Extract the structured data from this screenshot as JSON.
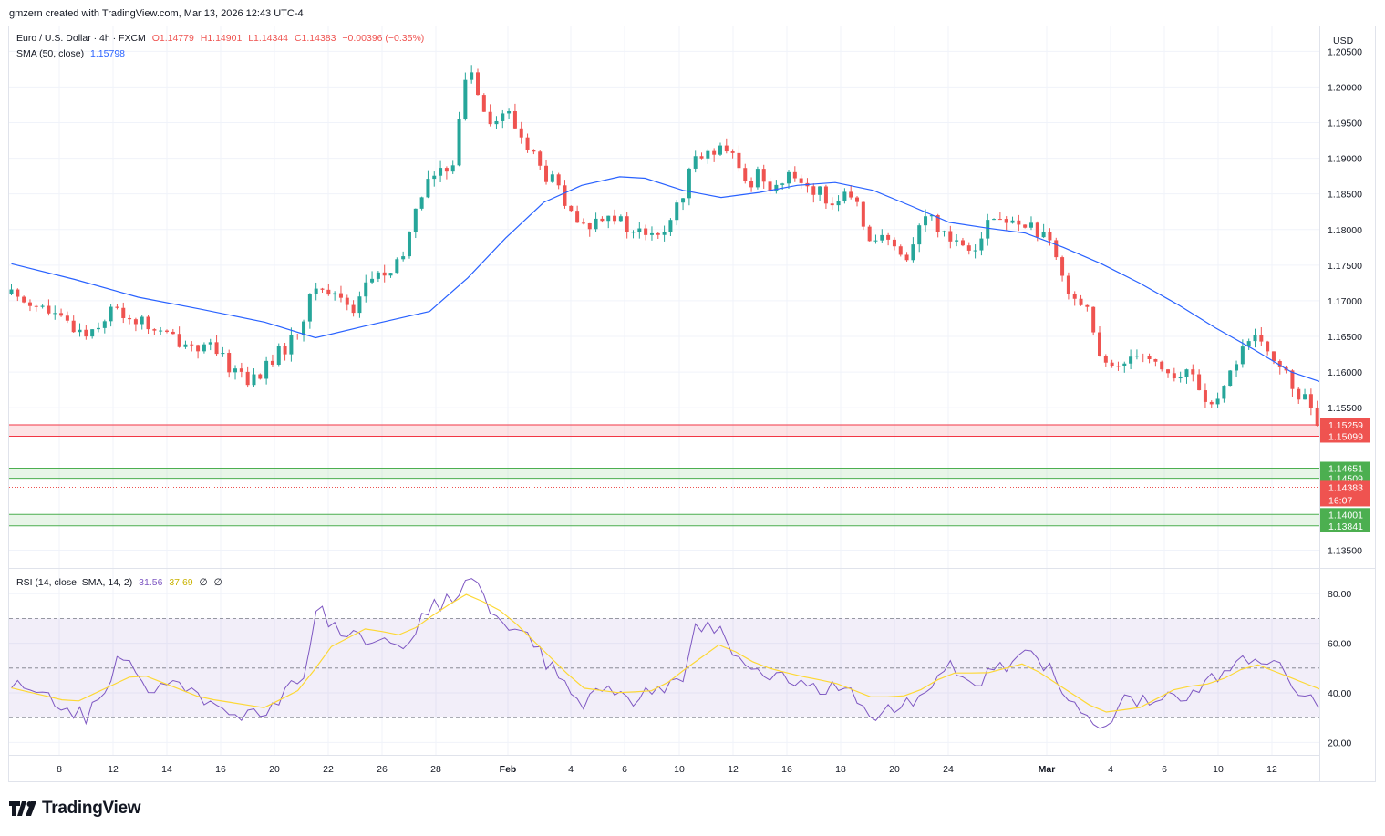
{
  "header": {
    "credit": "gmzern created with TradingView.com, Mar 13, 2026 12:43 UTC-4"
  },
  "legend": {
    "symbol": "Euro / U.S. Dollar · 4h · FXCM",
    "open": "O1.14779",
    "high": "H1.14901",
    "low": "L1.14344",
    "close": "C1.14383",
    "change": "−0.00396 (−0.35%)",
    "sma_label": "SMA (50, close)",
    "sma_value": "1.15798",
    "rsi_label": "RSI (14, close, SMA, 14, 2)",
    "rsi_value": "31.56",
    "rsi_ma_value": "37.69",
    "rsi_extra1": "∅",
    "rsi_extra2": "∅"
  },
  "currency": "USD",
  "countdown": "16:07",
  "brand": "TradingView",
  "colors": {
    "up": "#26a69a",
    "down": "#ef5350",
    "sma": "#2962ff",
    "rsi": "#7e57c2",
    "rsi_ma": "#fdd835",
    "grid": "#f0f3fa"
  },
  "chart_data": [
    {
      "type": "candlestick",
      "title": "Euro / U.S. Dollar · 4h · FXCM",
      "ylim": [
        1.1325,
        1.2085
      ],
      "price_ticks": [
        "1.20500",
        "1.20000",
        "1.19500",
        "1.19000",
        "1.18500",
        "1.18000",
        "1.17500",
        "1.17000",
        "1.16500",
        "1.16000",
        "1.15500",
        "1.13500"
      ],
      "x_ticks": [
        "8",
        "12",
        "14",
        "16",
        "20",
        "22",
        "26",
        "28",
        "Feb",
        "4",
        "6",
        "10",
        "12",
        "16",
        "18",
        "20",
        "24",
        "Mar",
        "4",
        "6",
        "10",
        "12"
      ],
      "zones": [
        {
          "name": "resistance",
          "high": 1.15259,
          "low": 1.15099,
          "high_label": "1.15259",
          "low_label": "1.15099",
          "color": "#f23645"
        },
        {
          "name": "support-1",
          "high": 1.14651,
          "low": 1.14509,
          "high_label": "1.14651",
          "low_label": "1.14509",
          "color": "#4caf50"
        },
        {
          "name": "support-2",
          "high": 1.14001,
          "low": 1.13841,
          "high_label": "1.14001",
          "low_label": "1.13841",
          "color": "#4caf50"
        }
      ],
      "last_price": 1.14383,
      "last_price_label": "1.14383",
      "close_path": [
        [
          0,
          1.171
        ],
        [
          4,
          1.1695
        ],
        [
          8,
          1.167
        ],
        [
          12,
          1.1655
        ],
        [
          16,
          1.1688
        ],
        [
          20,
          1.1672
        ],
        [
          24,
          1.1652
        ],
        [
          28,
          1.164
        ],
        [
          32,
          1.163
        ],
        [
          34,
          1.161
        ],
        [
          36,
          1.1602
        ],
        [
          38,
          1.1585
        ],
        [
          40,
          1.1605
        ],
        [
          42,
          1.1625
        ],
        [
          44,
          1.164
        ],
        [
          46,
          1.1675
        ],
        [
          48,
          1.172
        ],
        [
          50,
          1.1712
        ],
        [
          52,
          1.1705
        ],
        [
          54,
          1.169
        ],
        [
          56,
          1.1725
        ],
        [
          58,
          1.1738
        ],
        [
          60,
          1.1735
        ],
        [
          62,
          1.1765
        ],
        [
          64,
          1.184
        ],
        [
          66,
          1.1872
        ],
        [
          68,
          1.1878
        ],
        [
          70,
          1.1905
        ],
        [
          72,
          1.2035
        ],
        [
          74,
          1.1988
        ],
        [
          76,
          1.1945
        ],
        [
          78,
          1.1968
        ],
        [
          80,
          1.1935
        ],
        [
          82,
          1.1912
        ],
        [
          84,
          1.1875
        ],
        [
          86,
          1.1865
        ],
        [
          88,
          1.182
        ],
        [
          90,
          1.18
        ],
        [
          92,
          1.181
        ],
        [
          94,
          1.183
        ],
        [
          96,
          1.181
        ],
        [
          98,
          1.1795
        ],
        [
          100,
          1.1795
        ],
        [
          102,
          1.1785
        ],
        [
          104,
          1.1815
        ],
        [
          106,
          1.1842
        ],
        [
          108,
          1.1915
        ],
        [
          110,
          1.1905
        ],
        [
          112,
          1.191
        ],
        [
          114,
          1.19
        ],
        [
          116,
          1.186
        ],
        [
          118,
          1.1882
        ],
        [
          120,
          1.186
        ],
        [
          122,
          1.1868
        ],
        [
          124,
          1.1875
        ],
        [
          126,
          1.186
        ],
        [
          128,
          1.1848
        ],
        [
          130,
          1.184
        ],
        [
          132,
          1.1845
        ],
        [
          134,
          1.1822
        ],
        [
          136,
          1.1782
        ],
        [
          138,
          1.1788
        ],
        [
          140,
          1.1758
        ],
        [
          142,
          1.1772
        ],
        [
          144,
          1.1822
        ],
        [
          146,
          1.1808
        ],
        [
          148,
          1.179
        ],
        [
          150,
          1.1782
        ],
        [
          152,
          1.1778
        ],
        [
          154,
          1.1812
        ],
        [
          156,
          1.1815
        ],
        [
          158,
          1.1805
        ],
        [
          160,
          1.1812
        ],
        [
          162,
          1.1795
        ],
        [
          164,
          1.1775
        ],
        [
          166,
          1.173
        ],
        [
          168,
          1.1705
        ],
        [
          170,
          1.169
        ],
        [
          172,
          1.1605
        ],
        [
          174,
          1.1605
        ],
        [
          176,
          1.162
        ],
        [
          178,
          1.1635
        ],
        [
          180,
          1.1615
        ],
        [
          182,
          1.1605
        ],
        [
          184,
          1.1585
        ],
        [
          186,
          1.1605
        ],
        [
          188,
          1.1568
        ],
        [
          190,
          1.1545
        ],
        [
          192,
          1.1588
        ],
        [
          194,
          1.1635
        ],
        [
          196,
          1.1645
        ],
        [
          198,
          1.1628
        ],
        [
          200,
          1.1618
        ],
        [
          202,
          1.1575
        ],
        [
          204,
          1.1565
        ],
        [
          206,
          1.1528
        ],
        [
          208,
          1.1512
        ],
        [
          209,
          1.1448
        ],
        [
          210,
          1.1438
        ]
      ],
      "sma_path": [
        [
          0,
          1.1752
        ],
        [
          10,
          1.173
        ],
        [
          20,
          1.1705
        ],
        [
          30,
          1.1688
        ],
        [
          40,
          1.167
        ],
        [
          48,
          1.1648
        ],
        [
          56,
          1.1665
        ],
        [
          66,
          1.1685
        ],
        [
          72,
          1.1732
        ],
        [
          78,
          1.1788
        ],
        [
          84,
          1.1838
        ],
        [
          90,
          1.1862
        ],
        [
          96,
          1.1874
        ],
        [
          100,
          1.1872
        ],
        [
          106,
          1.1855
        ],
        [
          112,
          1.1845
        ],
        [
          118,
          1.1852
        ],
        [
          124,
          1.1862
        ],
        [
          130,
          1.1866
        ],
        [
          136,
          1.1855
        ],
        [
          142,
          1.1833
        ],
        [
          148,
          1.181
        ],
        [
          154,
          1.1802
        ],
        [
          160,
          1.1795
        ],
        [
          166,
          1.1775
        ],
        [
          172,
          1.1752
        ],
        [
          178,
          1.1725
        ],
        [
          184,
          1.1695
        ],
        [
          190,
          1.1662
        ],
        [
          196,
          1.1632
        ],
        [
          202,
          1.16
        ],
        [
          208,
          1.1582
        ],
        [
          210,
          1.158
        ]
      ]
    },
    {
      "type": "line",
      "title": "RSI (14, close, SMA, 14, 2)",
      "ylim": [
        15,
        90
      ],
      "y_ticks": [
        "80.00",
        "60.00",
        "40.00",
        "20.00"
      ],
      "bands": {
        "upper": 70,
        "middle": 50,
        "lower": 30
      },
      "series": [
        {
          "name": "RSI",
          "points": [
            [
              0,
              45
            ],
            [
              6,
              38
            ],
            [
              12,
              30
            ],
            [
              18,
              58
            ],
            [
              22,
              42
            ],
            [
              26,
              48
            ],
            [
              30,
              36
            ],
            [
              34,
              30
            ],
            [
              38,
              30
            ],
            [
              42,
              38
            ],
            [
              46,
              45
            ],
            [
              48,
              75
            ],
            [
              52,
              64
            ],
            [
              56,
              60
            ],
            [
              62,
              58
            ],
            [
              66,
              75
            ],
            [
              70,
              78
            ],
            [
              72,
              89
            ],
            [
              76,
              70
            ],
            [
              82,
              60
            ],
            [
              86,
              48
            ],
            [
              90,
              36
            ],
            [
              94,
              42
            ],
            [
              98,
              38
            ],
            [
              102,
              44
            ],
            [
              106,
              42
            ],
            [
              108,
              67
            ],
            [
              112,
              66
            ],
            [
              116,
              48
            ],
            [
              120,
              45
            ],
            [
              124,
              45
            ],
            [
              128,
              42
            ],
            [
              132,
              42
            ],
            [
              136,
              32
            ],
            [
              140,
              35
            ],
            [
              144,
              40
            ],
            [
              148,
              52
            ],
            [
              152,
              44
            ],
            [
              156,
              50
            ],
            [
              160,
              56
            ],
            [
              164,
              49
            ],
            [
              168,
              33
            ],
            [
              172,
              24
            ],
            [
              176,
              38
            ],
            [
              180,
              36
            ],
            [
              184,
              38
            ],
            [
              188,
              44
            ],
            [
              192,
              49
            ],
            [
              196,
              54
            ],
            [
              200,
              50
            ],
            [
              204,
              40
            ],
            [
              208,
              30
            ],
            [
              210,
              32
            ]
          ]
        },
        {
          "name": "RSI MA",
          "points": [
            [
              0,
              42
            ],
            [
              10,
              36
            ],
            [
              20,
              48
            ],
            [
              30,
              38
            ],
            [
              40,
              34
            ],
            [
              46,
              42
            ],
            [
              50,
              58
            ],
            [
              56,
              66
            ],
            [
              62,
              63
            ],
            [
              68,
              74
            ],
            [
              72,
              80
            ],
            [
              78,
              72
            ],
            [
              84,
              57
            ],
            [
              90,
              42
            ],
            [
              96,
              40
            ],
            [
              102,
              41
            ],
            [
              106,
              49
            ],
            [
              112,
              60
            ],
            [
              118,
              51
            ],
            [
              124,
              47
            ],
            [
              130,
              44
            ],
            [
              136,
              38
            ],
            [
              142,
              39
            ],
            [
              148,
              48
            ],
            [
              154,
              48
            ],
            [
              160,
              52
            ],
            [
              166,
              42
            ],
            [
              172,
              32
            ],
            [
              178,
              34
            ],
            [
              184,
              42
            ],
            [
              190,
              44
            ],
            [
              196,
              52
            ],
            [
              202,
              46
            ],
            [
              208,
              40
            ],
            [
              210,
              38
            ]
          ]
        }
      ]
    }
  ]
}
